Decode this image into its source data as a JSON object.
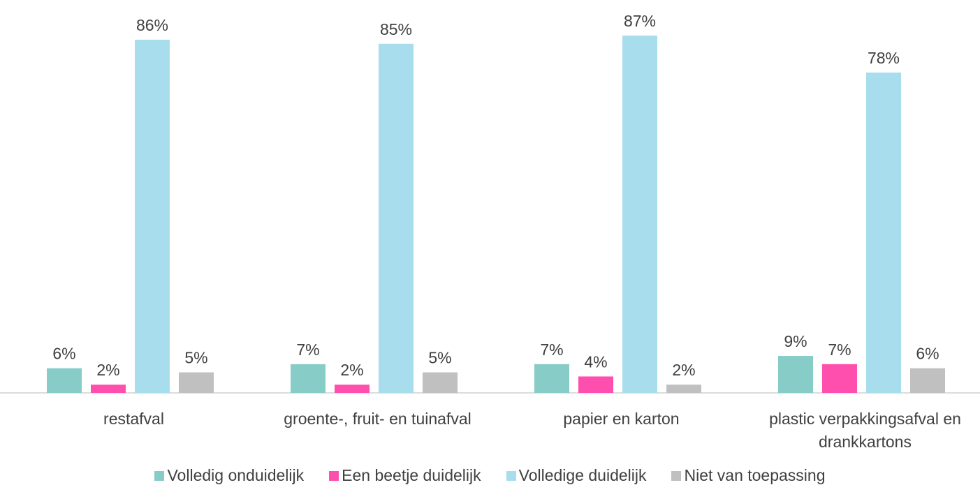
{
  "chart_data": {
    "type": "bar",
    "categories": [
      "restafval",
      "groente-, fruit- en tuinafval",
      "papier en karton",
      "plastic verpakkingsafval en drankkartons"
    ],
    "series": [
      {
        "name": "Volledig onduidelijk",
        "color": "#88ccc8",
        "values": [
          6,
          7,
          7,
          9
        ],
        "value_labels": [
          "6%",
          "7%",
          "7%",
          "9%"
        ]
      },
      {
        "name": "Een beetje duidelijk",
        "color": "#ff4fae",
        "values": [
          2,
          2,
          4,
          7
        ],
        "value_labels": [
          "2%",
          "2%",
          "4%",
          "7%"
        ]
      },
      {
        "name": "Volledige duidelijk",
        "color": "#a8ddee",
        "values": [
          86,
          85,
          87,
          78
        ],
        "value_labels": [
          "86%",
          "85%",
          "87%",
          "78%"
        ]
      },
      {
        "name": "Niet van toepassing",
        "color": "#c0c0c0",
        "values": [
          5,
          5,
          2,
          6
        ],
        "value_labels": [
          "5%",
          "5%",
          "2%",
          "6%"
        ]
      }
    ],
    "legend": "bottom"
  }
}
